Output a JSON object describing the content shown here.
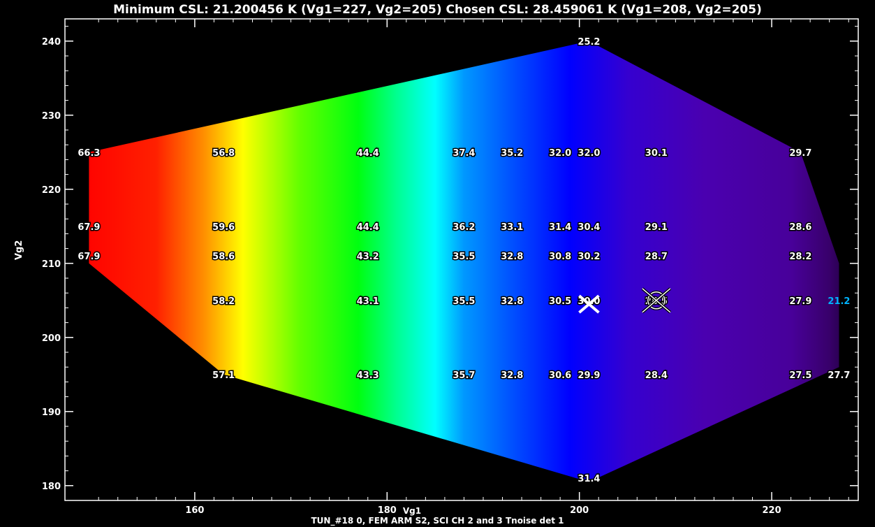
{
  "header": {
    "title": "Minimum CSL: 21.200456 K (Vg1=227, Vg2=205) Chosen CSL: 28.459061 K (Vg1=208, Vg2=205)"
  },
  "footer": {
    "caption": "TUN_#18 0, FEM ARM S2, SCI CH 2 and 3 Tnoise det 1"
  },
  "colors": {
    "background": "#000000",
    "axis": "#ffffff",
    "min_label": "#00b4ff",
    "marker": "#ffffff"
  },
  "chart_data": {
    "type": "heatmap",
    "title": "Minimum CSL: 21.200456 K (Vg1=227, Vg2=205) Chosen CSL: 28.459061 K (Vg1=208, Vg2=205)",
    "xlabel": "Vg1",
    "ylabel": "Vg2",
    "xlim": [
      146.5,
      229
    ],
    "ylim": [
      178,
      243
    ],
    "xticks": [
      160,
      180,
      200,
      220
    ],
    "yticks": [
      180,
      190,
      200,
      210,
      220,
      230,
      240
    ],
    "colormap": "rainbow (red = high, purple = low)",
    "grid": false,
    "points": [
      {
        "x": 149,
        "y": 225,
        "v": 66.3
      },
      {
        "x": 149,
        "y": 215,
        "v": 67.9
      },
      {
        "x": 149,
        "y": 211,
        "v": 67.9
      },
      {
        "x": 163,
        "y": 225,
        "v": 56.8
      },
      {
        "x": 163,
        "y": 215,
        "v": 59.6
      },
      {
        "x": 163,
        "y": 211,
        "v": 58.6
      },
      {
        "x": 163,
        "y": 205,
        "v": 58.2
      },
      {
        "x": 163,
        "y": 195,
        "v": 57.1
      },
      {
        "x": 178,
        "y": 225,
        "v": 44.4
      },
      {
        "x": 178,
        "y": 215,
        "v": 44.4
      },
      {
        "x": 178,
        "y": 211,
        "v": 43.2
      },
      {
        "x": 178,
        "y": 205,
        "v": 43.1
      },
      {
        "x": 178,
        "y": 195,
        "v": 43.3
      },
      {
        "x": 188,
        "y": 225,
        "v": 37.4
      },
      {
        "x": 188,
        "y": 215,
        "v": 36.2
      },
      {
        "x": 188,
        "y": 211,
        "v": 35.5
      },
      {
        "x": 188,
        "y": 205,
        "v": 35.5
      },
      {
        "x": 188,
        "y": 195,
        "v": 35.7
      },
      {
        "x": 193,
        "y": 225,
        "v": 35.2
      },
      {
        "x": 193,
        "y": 215,
        "v": 33.1
      },
      {
        "x": 193,
        "y": 211,
        "v": 32.8
      },
      {
        "x": 193,
        "y": 205,
        "v": 32.8
      },
      {
        "x": 193,
        "y": 195,
        "v": 32.8
      },
      {
        "x": 198,
        "y": 225,
        "v": 32.0
      },
      {
        "x": 198,
        "y": 215,
        "v": 31.4
      },
      {
        "x": 198,
        "y": 211,
        "v": 30.8
      },
      {
        "x": 198,
        "y": 205,
        "v": 30.5
      },
      {
        "x": 198,
        "y": 195,
        "v": 30.6
      },
      {
        "x": 201,
        "y": 240,
        "v": 25.2
      },
      {
        "x": 201,
        "y": 225,
        "v": 32.0
      },
      {
        "x": 201,
        "y": 215,
        "v": 30.4
      },
      {
        "x": 201,
        "y": 211,
        "v": 30.2
      },
      {
        "x": 201,
        "y": 205,
        "v": 30.0
      },
      {
        "x": 201,
        "y": 195,
        "v": 29.9
      },
      {
        "x": 201,
        "y": 181,
        "v": 31.4
      },
      {
        "x": 208,
        "y": 225,
        "v": 30.1
      },
      {
        "x": 208,
        "y": 215,
        "v": 29.1
      },
      {
        "x": 208,
        "y": 211,
        "v": 28.7
      },
      {
        "x": 208,
        "y": 205,
        "v": 28.5
      },
      {
        "x": 208,
        "y": 195,
        "v": 28.4
      },
      {
        "x": 223,
        "y": 225,
        "v": 29.7
      },
      {
        "x": 223,
        "y": 215,
        "v": 28.6
      },
      {
        "x": 223,
        "y": 211,
        "v": 28.2
      },
      {
        "x": 223,
        "y": 205,
        "v": 27.9
      },
      {
        "x": 223,
        "y": 195,
        "v": 27.5
      },
      {
        "x": 227,
        "y": 195,
        "v": 27.7
      },
      {
        "x": 227,
        "y": 205,
        "v": 21.2
      }
    ],
    "hull": [
      [
        149,
        225
      ],
      [
        201,
        240
      ],
      [
        223,
        225
      ],
      [
        227,
        210
      ],
      [
        227,
        196
      ],
      [
        201,
        180.5
      ],
      [
        163,
        195
      ],
      [
        149,
        210
      ]
    ],
    "minimum": {
      "x": 227,
      "y": 205,
      "v": 21.2
    },
    "chosen": {
      "x": 208,
      "y": 205,
      "v": 28.459061
    },
    "default_marker": {
      "x": 201,
      "y": 204.5
    }
  }
}
